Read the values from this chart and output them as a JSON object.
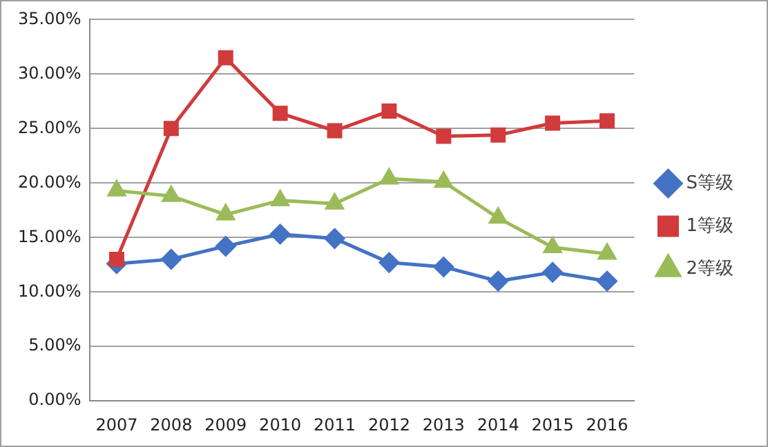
{
  "chart_data": {
    "type": "line",
    "categories": [
      "2007",
      "2008",
      "2009",
      "2010",
      "2011",
      "2012",
      "2013",
      "2014",
      "2015",
      "2016"
    ],
    "series": [
      {
        "name": "S等级",
        "color": "#4472c4",
        "marker": "diamond",
        "values": [
          12.6,
          13.0,
          14.2,
          15.3,
          14.9,
          12.7,
          12.3,
          11.0,
          11.8,
          11.0
        ]
      },
      {
        "name": "1等级",
        "color": "#d13b3b",
        "marker": "square",
        "values": [
          13.0,
          25.0,
          31.5,
          26.4,
          24.8,
          26.6,
          24.3,
          24.4,
          25.5,
          25.7
        ]
      },
      {
        "name": "2等级",
        "color": "#9bbb59",
        "marker": "triangle",
        "values": [
          19.3,
          18.8,
          17.1,
          18.4,
          18.1,
          20.4,
          20.1,
          16.8,
          14.1,
          13.5
        ]
      }
    ],
    "ylim": [
      0,
      35
    ],
    "yticks": [
      {
        "value": 0,
        "label": "0.00%"
      },
      {
        "value": 5,
        "label": "5.00%"
      },
      {
        "value": 10,
        "label": "10.00%"
      },
      {
        "value": 15,
        "label": "15.00%"
      },
      {
        "value": 20,
        "label": "20.00%"
      },
      {
        "value": 25,
        "label": "25.00%"
      },
      {
        "value": 30,
        "label": "30.00%"
      },
      {
        "value": 35,
        "label": "35.00%"
      }
    ],
    "grid": "y",
    "legend": "right"
  }
}
